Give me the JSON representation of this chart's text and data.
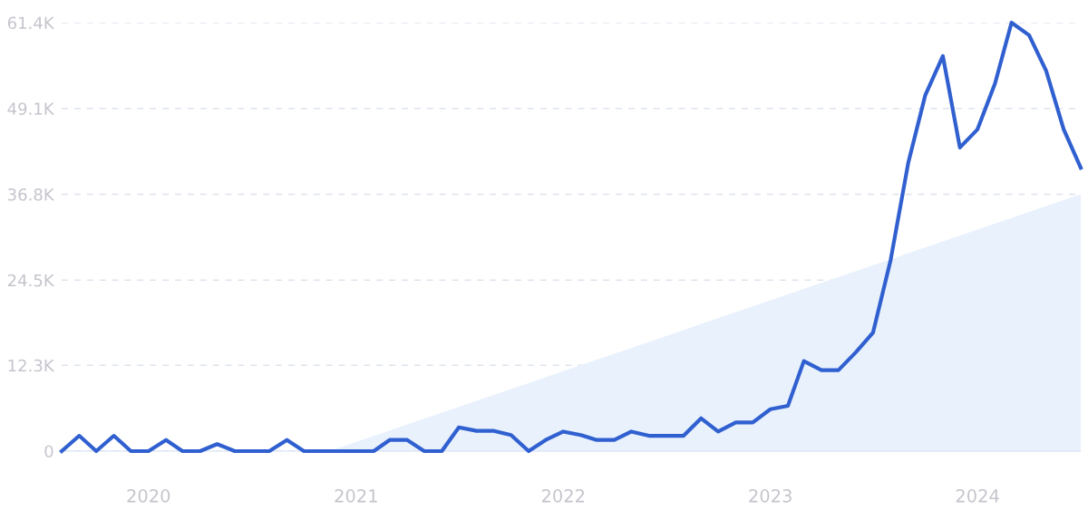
{
  "chart_data": {
    "type": "line",
    "x": [
      "2019-08",
      "2019-09",
      "2019-10",
      "2019-11",
      "2019-12",
      "2020-01",
      "2020-02",
      "2020-03",
      "2020-04",
      "2020-05",
      "2020-06",
      "2020-07",
      "2020-08",
      "2020-09",
      "2020-10",
      "2020-11",
      "2020-12",
      "2021-01",
      "2021-02",
      "2021-03",
      "2021-04",
      "2021-05",
      "2021-06",
      "2021-07",
      "2021-08",
      "2021-09",
      "2021-10",
      "2021-11",
      "2021-12",
      "2022-01",
      "2022-02",
      "2022-03",
      "2022-04",
      "2022-05",
      "2022-06",
      "2022-07",
      "2022-08",
      "2022-09",
      "2022-10",
      "2022-11",
      "2022-12",
      "2023-01",
      "2023-02",
      "2023-03",
      "2023-04",
      "2023-05",
      "2023-06",
      "2023-07",
      "2023-08",
      "2023-09",
      "2023-10",
      "2023-11",
      "2023-12",
      "2024-01",
      "2024-02",
      "2024-03",
      "2024-04",
      "2024-05",
      "2024-06",
      "2024-07"
    ],
    "series": [
      {
        "type": "area",
        "color": "#e8f1fc",
        "x": [
          "2020-11-15",
          "2024-07"
        ],
        "values": [
          0,
          36800
        ]
      },
      {
        "color": "#3060d0",
        "values": [
          0,
          2200,
          0,
          2200,
          0,
          0,
          1600,
          0,
          0,
          1000,
          0,
          0,
          0,
          1600,
          0,
          0,
          0,
          0,
          0,
          1600,
          1600,
          0,
          0,
          3400,
          2900,
          2900,
          2300,
          0,
          1600,
          2800,
          2300,
          1600,
          1600,
          2800,
          2200,
          2200,
          2200,
          4700,
          2800,
          4100,
          4100,
          6000,
          6500,
          12900,
          11600,
          11600,
          14200,
          17000,
          27400,
          41300,
          51000,
          56600,
          43500,
          46100,
          52700,
          61400,
          59600,
          54500,
          46100,
          40600
        ]
      }
    ],
    "xlim": [
      "2019-08",
      "2024-07"
    ],
    "xticks": [
      {
        "value": "2020-01",
        "label": "2020"
      },
      {
        "value": "2021-01",
        "label": "2021"
      },
      {
        "value": "2022-01",
        "label": "2022"
      },
      {
        "value": "2023-01",
        "label": "2023"
      },
      {
        "value": "2024-01",
        "label": "2024"
      }
    ],
    "ylim": [
      0,
      61400
    ],
    "yticks": [
      {
        "value": 0,
        "label": "0"
      },
      {
        "value": 12300,
        "label": "12.3K"
      },
      {
        "value": 24500,
        "label": "24.5K"
      },
      {
        "value": 36800,
        "label": "36.8K"
      },
      {
        "value": 49100,
        "label": "49.1K"
      },
      {
        "value": 61400,
        "label": "61.4K"
      }
    ],
    "grid": "y",
    "line_style": "solid",
    "marker": "none"
  }
}
